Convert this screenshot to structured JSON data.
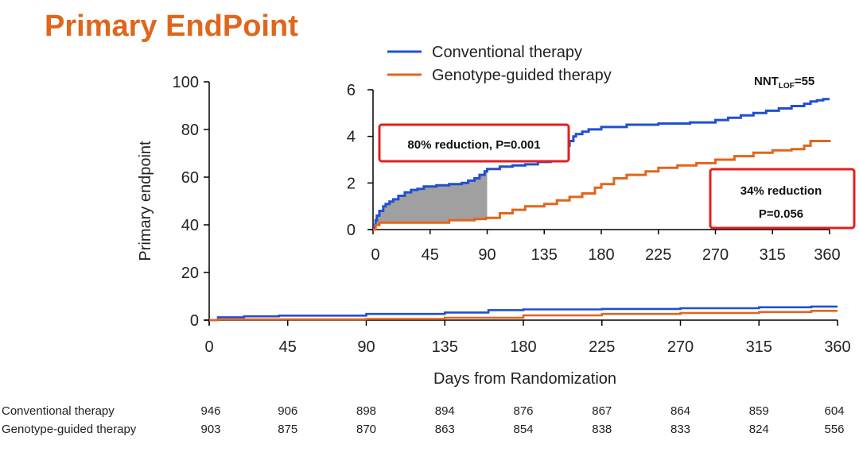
{
  "slide": {
    "title": "Primary EndPoint"
  },
  "colors": {
    "title": "#E0661C",
    "conventional": "#2050D0",
    "genotype": "#E0661C",
    "annotation_border": "#E02020",
    "shade": "#A0A0A0"
  },
  "chart_data": [
    {
      "type": "line",
      "role": "main",
      "title": "",
      "xlabel": "Days from Randomization",
      "ylabel": "Primary endpoint",
      "xlim": [
        0,
        360
      ],
      "ylim": [
        0,
        100
      ],
      "x_ticks": [
        0,
        45,
        90,
        135,
        180,
        225,
        270,
        315,
        360
      ],
      "y_ticks": [
        0,
        20,
        40,
        60,
        80,
        100
      ],
      "grid": false,
      "series": [
        {
          "name": "Conventional therapy",
          "color": "#2050D0",
          "step": true,
          "x": [
            0,
            5,
            20,
            40,
            90,
            135,
            160,
            180,
            225,
            270,
            315,
            345,
            360
          ],
          "y": [
            0,
            1.2,
            1.6,
            1.9,
            2.6,
            3.2,
            4.2,
            4.5,
            4.7,
            5.0,
            5.4,
            5.7,
            5.7
          ]
        },
        {
          "name": "Genotype-guided therapy",
          "color": "#E0661C",
          "step": true,
          "x": [
            0,
            5,
            90,
            135,
            180,
            225,
            270,
            315,
            345,
            360
          ],
          "y": [
            0,
            0.3,
            0.5,
            1.0,
            2.0,
            2.6,
            3.0,
            3.4,
            3.9,
            3.9
          ]
        }
      ],
      "at_risk": {
        "x": [
          0,
          45,
          90,
          135,
          180,
          225,
          270,
          315,
          360
        ],
        "rows": [
          {
            "label": "Conventional therapy",
            "values": [
              "946",
              "906",
              "898",
              "894",
              "876",
              "867",
              "864",
              "859",
              "604"
            ]
          },
          {
            "label": "Genotype-guided therapy",
            "values": [
              "903",
              "875",
              "870",
              "863",
              "854",
              "838",
              "833",
              "824",
              "556"
            ]
          }
        ]
      }
    },
    {
      "type": "line",
      "role": "inset",
      "xlim": [
        0,
        360
      ],
      "ylim": [
        0,
        6
      ],
      "x_ticks": [
        0,
        45,
        90,
        135,
        180,
        225,
        270,
        315,
        360
      ],
      "y_ticks": [
        0,
        2,
        4,
        6
      ],
      "legend": {
        "position": "top",
        "entries": [
          "Conventional therapy",
          "Genotype-guided therapy"
        ]
      },
      "nnt_label": {
        "base": "NNT",
        "subscript": "LOF",
        "suffix": "=55"
      },
      "shaded_interval": [
        0,
        90
      ],
      "annotations": [
        {
          "text": "80% reduction, P=0.001"
        },
        {
          "lines": [
            "34% reduction",
            "P=0.056"
          ]
        }
      ],
      "series": [
        {
          "name": "Conventional therapy",
          "color": "#2050D0",
          "x": [
            0,
            1,
            2,
            3,
            5,
            8,
            10,
            13,
            16,
            20,
            25,
            30,
            35,
            40,
            50,
            60,
            70,
            75,
            80,
            84,
            88,
            90,
            100,
            110,
            120,
            130,
            140,
            145,
            148,
            150,
            155,
            158,
            160,
            165,
            170,
            180,
            200,
            225,
            250,
            270,
            280,
            290,
            300,
            310,
            320,
            330,
            340,
            345,
            350,
            355,
            360
          ],
          "y": [
            0,
            0.2,
            0.4,
            0.6,
            0.8,
            1.0,
            1.1,
            1.2,
            1.3,
            1.45,
            1.6,
            1.7,
            1.75,
            1.85,
            1.9,
            1.95,
            2.0,
            2.1,
            2.2,
            2.35,
            2.5,
            2.6,
            2.7,
            2.75,
            2.8,
            2.9,
            3.1,
            3.3,
            3.4,
            3.6,
            3.8,
            4.0,
            4.1,
            4.2,
            4.3,
            4.4,
            4.5,
            4.55,
            4.6,
            4.7,
            4.8,
            4.9,
            5.0,
            5.1,
            5.2,
            5.3,
            5.4,
            5.5,
            5.55,
            5.6,
            5.6
          ]
        },
        {
          "name": "Genotype-guided therapy",
          "color": "#E0661C",
          "x": [
            0,
            2,
            5,
            30,
            60,
            80,
            89,
            90,
            100,
            110,
            120,
            135,
            145,
            155,
            165,
            175,
            180,
            190,
            200,
            215,
            225,
            240,
            255,
            270,
            285,
            300,
            315,
            330,
            340,
            345,
            360
          ],
          "y": [
            0,
            0.2,
            0.3,
            0.3,
            0.4,
            0.45,
            0.5,
            0.5,
            0.7,
            0.85,
            1.0,
            1.1,
            1.25,
            1.4,
            1.55,
            1.8,
            1.95,
            2.2,
            2.35,
            2.5,
            2.65,
            2.75,
            2.85,
            3.0,
            3.15,
            3.3,
            3.4,
            3.45,
            3.6,
            3.8,
            3.85
          ]
        }
      ]
    }
  ]
}
